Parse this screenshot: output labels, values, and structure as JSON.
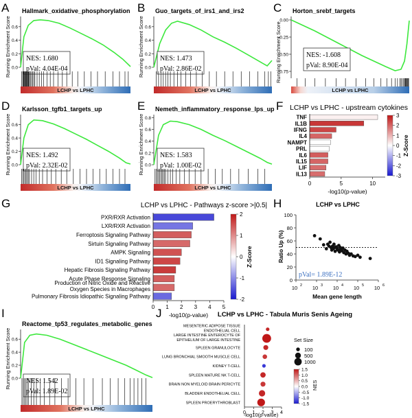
{
  "figure": {
    "colors": {
      "curve": "#3ce83c",
      "red": "#c8302c",
      "blue": "#3a78c2",
      "bar_light": "#eef1fb",
      "bar_blue": "#4654d6"
    }
  },
  "chart_data": [
    {
      "panel": "A",
      "type": "line",
      "kind": "gsea",
      "title": "Hallmark_oxidative_phosphorylation",
      "ylabel": "Running Enrichment Score",
      "yticks": [
        "0.6",
        "0.4",
        "0.2",
        "0.0"
      ],
      "ylim": [
        0,
        0.75
      ],
      "nes_label": "NES: 1.680",
      "pval_label": "pVal: 4.04E-04",
      "bar_label": "LCHP vs LPHC",
      "x": [
        0,
        0.03,
        0.07,
        0.12,
        0.18,
        0.25,
        0.35,
        0.45,
        0.55,
        0.65,
        0.75,
        0.85,
        0.93,
        1.0
      ],
      "values": [
        0,
        0.45,
        0.62,
        0.69,
        0.7,
        0.69,
        0.65,
        0.58,
        0.5,
        0.42,
        0.33,
        0.22,
        0.12,
        0.01
      ],
      "hits": [
        0.01,
        0.02,
        0.025,
        0.03,
        0.035,
        0.04,
        0.045,
        0.05,
        0.055,
        0.06,
        0.065,
        0.07,
        0.075,
        0.08,
        0.09,
        0.1,
        0.11,
        0.12,
        0.13,
        0.15,
        0.17,
        0.19,
        0.21,
        0.24,
        0.27,
        0.3,
        0.34,
        0.38,
        0.42,
        0.47,
        0.52,
        0.58,
        0.64,
        0.7,
        0.77,
        0.84,
        0.9,
        0.95,
        0.98
      ]
    },
    {
      "panel": "B",
      "type": "line",
      "kind": "gsea",
      "title": "Guo_targets_of_irs1_and_irs2",
      "ylabel": "Running Enrichment Score",
      "yticks": [
        "0.6",
        "0.4",
        "0.2",
        "0.0"
      ],
      "ylim": [
        0,
        0.75
      ],
      "nes_label": "NES: 1.473",
      "pval_label": "pVal: 2.86E-02",
      "bar_label": "LCHP vs LPHC",
      "x": [
        0,
        0.05,
        0.1,
        0.15,
        0.2,
        0.3,
        0.4,
        0.5,
        0.6,
        0.7,
        0.8,
        0.9,
        0.96,
        1.0
      ],
      "values": [
        0,
        0.35,
        0.55,
        0.65,
        0.68,
        0.63,
        0.55,
        0.45,
        0.37,
        0.28,
        0.18,
        0.08,
        0.02,
        0.1
      ],
      "hits": [
        0.02,
        0.04,
        0.06,
        0.08,
        0.1,
        0.12,
        0.14,
        0.17,
        0.2,
        0.23,
        0.27,
        0.31,
        0.36,
        0.41,
        0.47,
        0.53,
        0.6,
        0.67,
        0.74,
        0.81,
        0.88,
        0.94,
        0.97,
        0.99
      ]
    },
    {
      "panel": "C",
      "type": "line",
      "kind": "gsea",
      "title": "Horton_srebf_targets",
      "ylabel": "Running Enrichment Score",
      "yticks": [
        "0.00",
        "-0.25",
        "-0.50",
        "-0.75"
      ],
      "ylim": [
        -0.85,
        0.05
      ],
      "nes_label": "NES: -1.608",
      "pval_label": "pVal: 8.90E-04",
      "bar_label": "LCHP vs LPHC",
      "x": [
        0,
        0.1,
        0.2,
        0.3,
        0.4,
        0.5,
        0.6,
        0.7,
        0.8,
        0.88,
        0.93,
        0.96,
        0.98,
        1.0
      ],
      "values": [
        0,
        -0.08,
        -0.16,
        -0.25,
        -0.34,
        -0.43,
        -0.52,
        -0.6,
        -0.68,
        -0.74,
        -0.72,
        -0.6,
        -0.35,
        -0.01
      ],
      "hits": [
        0.05,
        0.12,
        0.2,
        0.29,
        0.38,
        0.46,
        0.55,
        0.63,
        0.7,
        0.76,
        0.81,
        0.85,
        0.88,
        0.9,
        0.92,
        0.93,
        0.94,
        0.95,
        0.96,
        0.965,
        0.97,
        0.975,
        0.98,
        0.985,
        0.99,
        0.995
      ]
    },
    {
      "panel": "D",
      "type": "line",
      "kind": "gsea",
      "title": "Karlsson_tgfb1_targets_up",
      "ylabel": "Running Enrichment Score",
      "yticks": [
        "0.6",
        "0.4",
        "0.2",
        "0.0"
      ],
      "ylim": [
        0,
        0.75
      ],
      "nes_label": "NES: 1.492",
      "pval_label": "pVal: 2.32E-02",
      "bar_label": "LCHP vs LPHC",
      "x": [
        0,
        0.03,
        0.07,
        0.12,
        0.2,
        0.3,
        0.4,
        0.5,
        0.6,
        0.7,
        0.8,
        0.9,
        0.96,
        1.0
      ],
      "values": [
        0,
        0.4,
        0.6,
        0.67,
        0.66,
        0.61,
        0.54,
        0.46,
        0.38,
        0.29,
        0.2,
        0.1,
        0.03,
        0.01
      ],
      "hits": [
        0.01,
        0.02,
        0.03,
        0.04,
        0.05,
        0.06,
        0.07,
        0.08,
        0.1,
        0.12,
        0.14,
        0.17,
        0.2,
        0.24,
        0.28,
        0.32,
        0.37,
        0.42,
        0.48,
        0.54,
        0.6,
        0.66,
        0.72,
        0.78,
        0.84,
        0.9,
        0.95
      ]
    },
    {
      "panel": "E",
      "type": "line",
      "kind": "gsea",
      "title": "Nemeth_inflammatory_response_lps_up",
      "ylabel": "Running Enrichment Score",
      "yticks": [
        "0.8",
        "0.6",
        "0.4",
        "0.2",
        "0.0"
      ],
      "ylim": [
        0,
        0.85
      ],
      "nes_label": "NES: 1.583",
      "pval_label": "pVal: 1.00E-02",
      "bar_label": "LCHP vs LPHC",
      "x": [
        0,
        0.04,
        0.08,
        0.14,
        0.2,
        0.3,
        0.4,
        0.5,
        0.6,
        0.7,
        0.8,
        0.9,
        0.96,
        1.0
      ],
      "values": [
        0,
        0.5,
        0.68,
        0.74,
        0.73,
        0.68,
        0.6,
        0.5,
        0.41,
        0.31,
        0.21,
        0.11,
        0.04,
        0.01
      ],
      "hits": [
        0.01,
        0.02,
        0.03,
        0.04,
        0.05,
        0.06,
        0.07,
        0.08,
        0.09,
        0.1,
        0.12,
        0.14,
        0.16,
        0.19,
        0.22,
        0.26,
        0.3,
        0.35,
        0.4,
        0.46,
        0.52,
        0.58,
        0.65,
        0.72,
        0.8,
        0.88,
        0.94
      ]
    },
    {
      "panel": "F",
      "type": "bar",
      "orientation": "horizontal",
      "title": "LCHP vs LPHC - upstream cytokines",
      "categories": [
        "TNF",
        "IL1B",
        "IFNG",
        "IL4",
        "NAMPT",
        "PRL",
        "IL6",
        "IL15",
        "LIF",
        "IL13"
      ],
      "values": [
        10.8,
        8.6,
        4.2,
        3.5,
        3.3,
        3.1,
        2.9,
        2.9,
        2.6,
        2.4
      ],
      "zscores": [
        0.2,
        2.6,
        2.4,
        2.0,
        0.0,
        0.0,
        2.1,
        2.0,
        1.9,
        1.9
      ],
      "xlabel": "-log10(p-value)",
      "xlim": [
        0,
        12
      ],
      "xticks": [
        "0",
        "5",
        "10"
      ],
      "colorbar_title": "Z-Score",
      "colorbar_ticks": [
        "3",
        "2",
        "1",
        "0",
        "-1",
        "-2",
        "-3"
      ],
      "colorbar_range": [
        -3,
        3
      ]
    },
    {
      "panel": "G",
      "type": "bar",
      "orientation": "horizontal",
      "title": "LCHP vs LPHC - Pathways  z-score >|0.5|",
      "categories": [
        "PXR/RXR Activation",
        "LXR/RXR Activation",
        "Ferroptosis Signaling Pathway",
        "Sirtuin Signaling Pathway",
        "AMPK Signaling",
        "ID1 Signaling Pathway",
        "Hepatic Fibrosis Signaling Pathway",
        "Acute Phase Response Signaling",
        "Production of Nitric Oxide and Reactive Oxygen Species in Macrophages",
        "Pulmonary Fibrosis Idiopathic Signaling Pathway"
      ],
      "category_lines": [
        [
          "PXR/RXR Activation"
        ],
        [
          "LXR/RXR Activation"
        ],
        [
          "Ferroptosis Signaling Pathway"
        ],
        [
          "Sirtuin Signaling Pathway"
        ],
        [
          "AMPK Signaling"
        ],
        [
          "ID1 Signaling Pathway"
        ],
        [
          "Hepatic Fibrosis Signaling Pathway"
        ],
        [
          "Acute Phase Response Signaling"
        ],
        [
          "Production of Nitric Oxide and Reactive",
          "Oxygen Species in Macrophages"
        ],
        [
          "Pulmonary Fibrosis Idiopathic Signaling Pathway"
        ]
      ],
      "values": [
        4.3,
        2.8,
        2.7,
        2.6,
        2.0,
        1.9,
        1.6,
        1.5,
        1.5,
        1.3
      ],
      "zscores": [
        -1.6,
        -1.2,
        1.4,
        1.3,
        1.5,
        1.6,
        1.7,
        1.4,
        1.3,
        -1.3
      ],
      "xlabel": "-log10(p-value)",
      "xlim": [
        0,
        5
      ],
      "xticks": [
        "0",
        "1",
        "2",
        "3",
        "4",
        "5"
      ],
      "colorbar_title": "Z-Score",
      "colorbar_ticks": [
        "2",
        "1",
        "0",
        "-1",
        "-2"
      ],
      "colorbar_range": [
        -2,
        2
      ]
    },
    {
      "panel": "H",
      "type": "scatter",
      "title": "LCHP vs LPHC",
      "xlabel": "Mean gene length",
      "ylabel": "Ratio Up (%)",
      "xscale": "log",
      "xlim": [
        100,
        1000000
      ],
      "ylim": [
        0,
        100
      ],
      "xtick_labels": [
        [
          "10",
          "2"
        ],
        [
          "10",
          "3"
        ],
        [
          "10",
          "4"
        ],
        [
          "10",
          "5"
        ],
        [
          "10",
          "6"
        ]
      ],
      "yticks": [
        "0",
        "20",
        "40",
        "60",
        "80",
        "100"
      ],
      "reference_line": 50,
      "pval_label": "pVal= 1.89E-12",
      "points": [
        [
          800,
          68
        ],
        [
          1500,
          63
        ],
        [
          2200,
          54
        ],
        [
          3000,
          48
        ],
        [
          3500,
          55
        ],
        [
          4000,
          52
        ],
        [
          4500,
          58
        ],
        [
          5000,
          50
        ],
        [
          5500,
          46
        ],
        [
          6000,
          52
        ],
        [
          6500,
          48
        ],
        [
          7000,
          55
        ],
        [
          7500,
          50
        ],
        [
          8000,
          44
        ],
        [
          9000,
          51
        ],
        [
          10000,
          48
        ],
        [
          11000,
          46
        ],
        [
          12000,
          53
        ],
        [
          13000,
          43
        ],
        [
          14000,
          50
        ],
        [
          15000,
          47
        ],
        [
          17000,
          45
        ],
        [
          19000,
          49
        ],
        [
          21000,
          42
        ],
        [
          24000,
          46
        ],
        [
          27000,
          40
        ],
        [
          30000,
          44
        ],
        [
          35000,
          41
        ],
        [
          40000,
          38
        ],
        [
          48000,
          40
        ],
        [
          60000,
          37
        ],
        [
          75000,
          36
        ],
        [
          100000,
          38
        ],
        [
          130000,
          35
        ],
        [
          400000,
          33
        ]
      ]
    },
    {
      "panel": "I",
      "type": "line",
      "kind": "gsea",
      "title": "Reactome_tp53_regulates_metabolic_genes",
      "ylabel": "Running Enrichment Score",
      "yticks": [
        "0.6",
        "0.4",
        "0.2",
        "0.0"
      ],
      "ylim": [
        0,
        0.75
      ],
      "nes_label": "NES: 1.542",
      "pval_label": "pVal: 1.89E-02",
      "bar_label": "LCHP vs LPHC",
      "x": [
        0,
        0.03,
        0.07,
        0.12,
        0.2,
        0.3,
        0.4,
        0.5,
        0.6,
        0.7,
        0.8,
        0.88,
        0.95,
        1.0
      ],
      "values": [
        0,
        0.55,
        0.66,
        0.68,
        0.66,
        0.6,
        0.52,
        0.44,
        0.36,
        0.28,
        0.2,
        0.12,
        0.05,
        0.01
      ],
      "hits": [
        0.01,
        0.02,
        0.03,
        0.04,
        0.05,
        0.06,
        0.08,
        0.1,
        0.12,
        0.15,
        0.18,
        0.22,
        0.26,
        0.31,
        0.36,
        0.42,
        0.48,
        0.55,
        0.62,
        0.68,
        0.74,
        0.79,
        0.83,
        0.86,
        0.89,
        0.92,
        0.95
      ]
    },
    {
      "panel": "J",
      "type": "scatter",
      "kind": "dotplot",
      "title": "LCHP vs LPHC - Tabula Muris Senis Ageing",
      "categories": [
        "MESENTERIC ADIPOSE TISSUE ENDOTHELIAL CELL",
        "LARGE INTESTINE ENTEROCYTE OF EPITHELIUM OF LARGE INTESTINE",
        "SPLEEN GRANULOCYTE",
        "LUNG BRONCHIAL SMOOTH MUSCLE CELL",
        "KIDNEY T-CELL",
        "SPLEEN MATURE NK T-CELL",
        "BRAIN NON MYELOID BRAIN PERICYTE",
        "BLADDER ENDOTHELIAL CELL",
        "SPLEEN PROERYTHROBLAST"
      ],
      "category_lines": [
        [
          "MESENTERIC ADIPOSE TISSUE",
          "ENDOTHELIAL CELL"
        ],
        [
          "LARGE INTESTINE ENTEROCYTE OF",
          "EPITHELIUM OF LARGE INTESTINE"
        ],
        [
          "SPLEEN GRANULOCYTE"
        ],
        [
          "LUNG BRONCHIAL SMOOTH MUSCLE CELL"
        ],
        [
          "KIDNEY T-CELL"
        ],
        [
          "SPLEEN MATURE NK T-CELL"
        ],
        [
          "BRAIN NON MYELOID BRAIN PERICYTE"
        ],
        [
          "BLADDER ENDOTHELIAL CELL"
        ],
        [
          "SPLEEN PROERYTHROBLAST"
        ]
      ],
      "x": [
        2.5,
        2.4,
        2.3,
        2.2,
        2.1,
        2.0,
        2.0,
        1.9,
        1.8
      ],
      "set_size": [
        60,
        1000,
        200,
        150,
        60,
        250,
        200,
        400,
        700
      ],
      "nes": [
        1.4,
        1.5,
        1.4,
        1.3,
        -1.3,
        1.4,
        1.3,
        1.4,
        1.5
      ],
      "xlabel": "-log10(p-value)",
      "xlim": [
        0,
        4
      ],
      "xticks": [
        "0",
        "1",
        "2",
        "3",
        "4"
      ],
      "size_legend_title": "Set Size",
      "size_legend": [
        100,
        500,
        1000
      ],
      "colorbar_title": "NES",
      "colorbar_ticks": [
        "1.5",
        "1.0",
        "0.5",
        "0.0",
        "-0.5",
        "-1.0",
        "-1.5"
      ],
      "colorbar_range": [
        -1.5,
        1.5
      ]
    }
  ]
}
